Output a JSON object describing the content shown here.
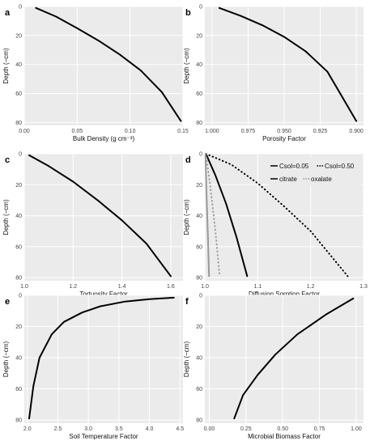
{
  "chart_data": [
    {
      "panel_label": "a",
      "type": "line",
      "xlabel": "Bulk Density (g cm⁻³)",
      "ylabel": "Depth (−cm)",
      "xlim": [
        0.0,
        0.15
      ],
      "ylim": [
        0,
        82
      ],
      "y_reversed": true,
      "x_ticks": [
        0.0,
        0.05,
        0.1,
        0.15
      ],
      "x_tick_labels": [
        "0.00",
        "0.05",
        "0.10",
        "0.15"
      ],
      "y_ticks": [
        0,
        20,
        40,
        60,
        80
      ],
      "y_tick_labels": [
        "0",
        "20",
        "40",
        "60",
        "80"
      ],
      "series": [
        {
          "color": "#000000",
          "dash": "solid",
          "width": 2,
          "x": [
            0.011,
            0.03,
            0.05,
            0.07,
            0.09,
            0.11,
            0.13,
            0.148
          ],
          "y": [
            1,
            7,
            15,
            23.5,
            33,
            44,
            59,
            79
          ]
        }
      ]
    },
    {
      "panel_label": "b",
      "type": "line",
      "xlabel": "Porosity Factor",
      "ylabel": "Depth (−cm)",
      "xlim": [
        1.005,
        0.895
      ],
      "ylim": [
        0,
        82
      ],
      "y_reversed": true,
      "x_ticks": [
        1.0,
        0.975,
        0.95,
        0.925,
        0.9
      ],
      "x_tick_labels": [
        "1.000",
        "0.975",
        "0.950",
        "0.925",
        "0.900"
      ],
      "y_ticks": [
        0,
        20,
        40,
        60,
        80
      ],
      "y_tick_labels": [
        "0",
        "20",
        "40",
        "60",
        "80"
      ],
      "series": [
        {
          "color": "#000000",
          "dash": "solid",
          "width": 2,
          "x": [
            0.995,
            0.98,
            0.965,
            0.95,
            0.935,
            0.92,
            0.9
          ],
          "y": [
            1,
            6.5,
            13,
            21,
            31,
            45,
            79
          ]
        }
      ]
    },
    {
      "panel_label": "c",
      "type": "line",
      "xlabel": "Tortuosity Factor",
      "ylabel": "Depth (−cm)",
      "xlim": [
        1.0,
        1.65
      ],
      "ylim": [
        0,
        82
      ],
      "y_reversed": true,
      "x_ticks": [
        1.0,
        1.2,
        1.4,
        1.6
      ],
      "x_tick_labels": [
        "1.0",
        "1.2",
        "1.4",
        "1.6"
      ],
      "y_ticks": [
        0,
        20,
        40,
        60,
        80
      ],
      "y_tick_labels": [
        "0",
        "20",
        "40",
        "60",
        "80"
      ],
      "series": [
        {
          "color": "#000000",
          "dash": "solid",
          "width": 2,
          "x": [
            1.02,
            1.1,
            1.2,
            1.3,
            1.4,
            1.5,
            1.6
          ],
          "y": [
            1,
            8,
            18,
            30,
            43,
            58,
            79
          ]
        }
      ]
    },
    {
      "panel_label": "d",
      "type": "line",
      "xlabel": "Diffusion Sorption Factor",
      "ylabel": "Depth (−cm)",
      "xlim": [
        1.0,
        1.3
      ],
      "ylim": [
        0,
        82
      ],
      "y_reversed": true,
      "x_ticks": [
        1.0,
        1.1,
        1.2,
        1.3
      ],
      "x_tick_labels": [
        "1.0",
        "1.1",
        "1.2",
        "1.3"
      ],
      "y_ticks": [
        0,
        20,
        40,
        60,
        80
      ],
      "y_tick_labels": [
        "0",
        "20",
        "40",
        "60",
        "80"
      ],
      "legend": {
        "position": "top-right",
        "row1": [
          "Csol=0.05",
          "Csol=0.50"
        ],
        "row2": [
          "citrate",
          "oxalate"
        ]
      },
      "series": [
        {
          "color": "#000000",
          "dash": "solid",
          "width": 2,
          "x": [
            1.002,
            1.02,
            1.04,
            1.06,
            1.08
          ],
          "y": [
            0,
            14,
            32,
            54,
            79
          ]
        },
        {
          "color": "#000000",
          "dash": "dotted",
          "width": 2,
          "x": [
            1.002,
            1.05,
            1.1,
            1.15,
            1.2,
            1.27
          ],
          "y": [
            0,
            7,
            19,
            34,
            50,
            79
          ]
        },
        {
          "color": "#999999",
          "dash": "solid",
          "width": 2,
          "x": [
            1.001,
            1.003,
            1.006,
            1.008
          ],
          "y": [
            0,
            25,
            55,
            79
          ]
        },
        {
          "color": "#999999",
          "dash": "dotted",
          "width": 2,
          "x": [
            1.002,
            1.01,
            1.02,
            1.028
          ],
          "y": [
            0,
            20,
            50,
            79
          ]
        }
      ]
    },
    {
      "panel_label": "e",
      "type": "line",
      "xlabel": "Soil Temperature Factor",
      "ylabel": "Depth (−cm)",
      "xlim": [
        1.95,
        4.55
      ],
      "ylim": [
        0,
        82
      ],
      "y_reversed": true,
      "x_ticks": [
        2.0,
        2.5,
        3.0,
        3.5,
        4.0,
        4.5
      ],
      "x_tick_labels": [
        "2.0",
        "2.5",
        "3.0",
        "3.5",
        "4.0",
        "4.5"
      ],
      "y_ticks": [
        0,
        20,
        40,
        60,
        80
      ],
      "y_tick_labels": [
        "0",
        "20",
        "40",
        "60",
        "80"
      ],
      "series": [
        {
          "color": "#000000",
          "dash": "solid",
          "width": 2,
          "x": [
            4.4,
            4.0,
            3.6,
            3.2,
            2.9,
            2.6,
            2.4,
            2.2,
            2.1,
            2.03
          ],
          "y": [
            1.5,
            2.5,
            4,
            7,
            11,
            17,
            25,
            40,
            58,
            79
          ]
        }
      ]
    },
    {
      "panel_label": "f",
      "type": "line",
      "xlabel": "Microbial Biomass Factor",
      "ylabel": "Depth (−cm)",
      "xlim": [
        -0.03,
        1.05
      ],
      "ylim": [
        0,
        82
      ],
      "y_reversed": true,
      "x_ticks": [
        0.0,
        0.25,
        0.5,
        0.75,
        1.0
      ],
      "x_tick_labels": [
        "0.00",
        "0.25",
        "0.50",
        "0.75",
        "1.00"
      ],
      "y_ticks": [
        0,
        20,
        40,
        60,
        80
      ],
      "y_tick_labels": [
        "0",
        "20",
        "40",
        "60",
        "80"
      ],
      "series": [
        {
          "color": "#000000",
          "dash": "solid",
          "width": 2,
          "x": [
            0.98,
            0.8,
            0.6,
            0.45,
            0.33,
            0.23,
            0.17
          ],
          "y": [
            2,
            12,
            25,
            38,
            51,
            64,
            79
          ]
        }
      ]
    }
  ]
}
